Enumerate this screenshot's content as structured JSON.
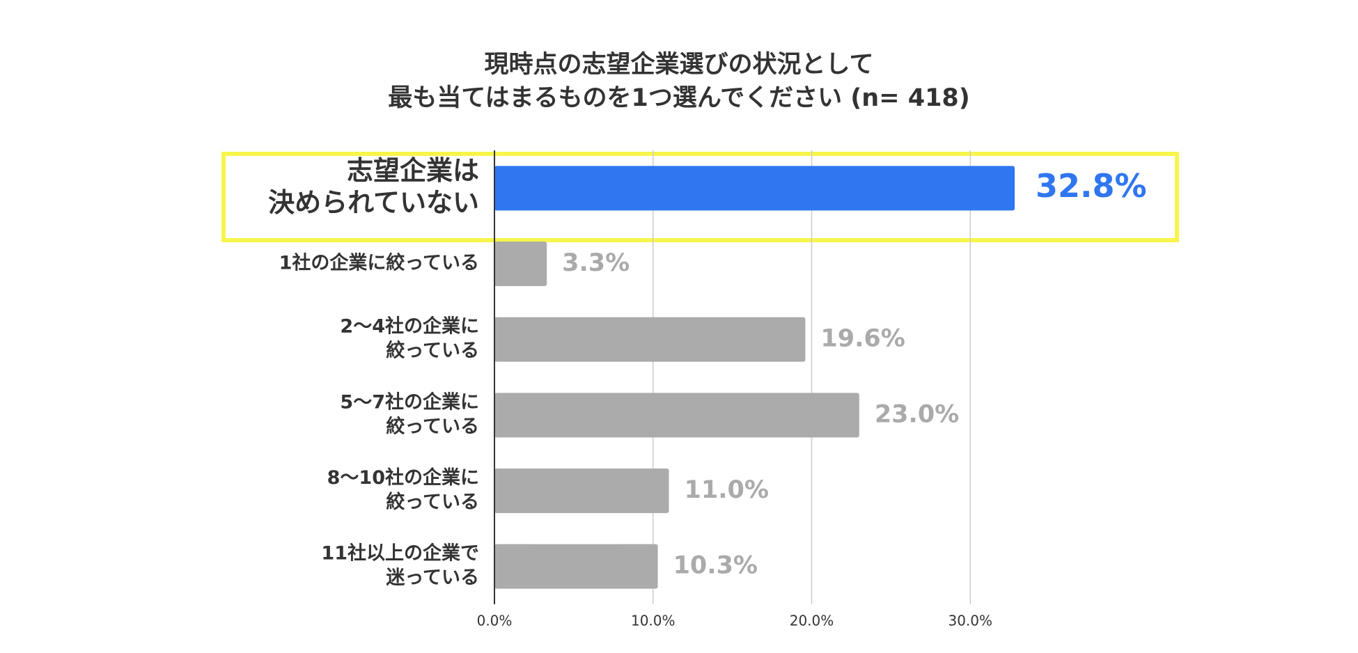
{
  "chart_data": {
    "type": "bar",
    "orientation": "horizontal",
    "title": [
      "現時点の志望企業選びの状況として",
      "最も当てはまるものを1つ選んでください (n= 418)"
    ],
    "categories": [
      [
        "志望企業は",
        "決められていない"
      ],
      [
        "1社の企業に絞っている"
      ],
      [
        "2〜4社の企業に",
        "絞っている"
      ],
      [
        "5〜7社の企業に",
        "絞っている"
      ],
      [
        "8〜10社の企業に",
        "絞っている"
      ],
      [
        "11社以上の企業で",
        "迷っている"
      ]
    ],
    "values": [
      32.8,
      3.3,
      19.6,
      23.0,
      11.0,
      10.3
    ],
    "value_labels": [
      "32.8%",
      "3.3%",
      "19.6%",
      "23.0%",
      "11.0%",
      "10.3%"
    ],
    "colors": [
      "#2f76f0",
      "#ababab",
      "#ababab",
      "#ababab",
      "#ababab",
      "#ababab"
    ],
    "xlim": [
      0,
      40
    ],
    "xticks": [
      {
        "value": 0,
        "label": "0.0%"
      },
      {
        "value": 10,
        "label": "10.0%"
      },
      {
        "value": 20,
        "label": "20.0%"
      },
      {
        "value": 30,
        "label": "30.0%"
      }
    ],
    "grid": true
  }
}
